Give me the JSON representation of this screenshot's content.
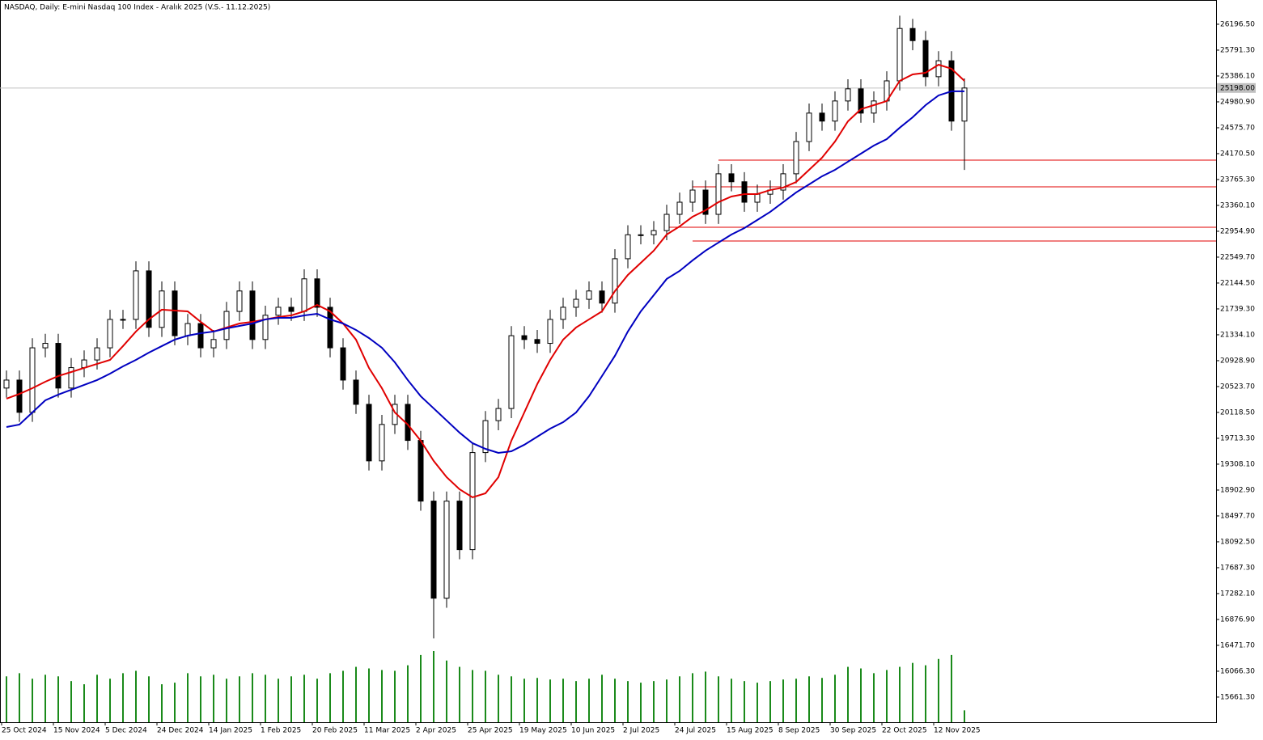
{
  "chart_data": {
    "type": "candlestick",
    "title": "NASDAQ, Daily:  E-mini Nasdaq 100 Index - Aralık 2025 (V.S.- 11.12.2025)",
    "categories": [
      "25 Oct 2024",
      null,
      null,
      null,
      "15 Nov 2024",
      null,
      null,
      null,
      "5 Dec 2024",
      null,
      null,
      null,
      "24 Dec 2024",
      null,
      null,
      null,
      "14 Jan 2025",
      null,
      null,
      null,
      "1 Feb 2025",
      null,
      null,
      null,
      "20 Feb 2025",
      null,
      null,
      null,
      "11 Mar 2025",
      null,
      null,
      null,
      "2 Apr 2025",
      null,
      null,
      null,
      "25 Apr 2025",
      null,
      null,
      null,
      "19 May 2025",
      null,
      null,
      null,
      "10 Jun 2025",
      null,
      null,
      null,
      "2 Jul 2025",
      null,
      null,
      null,
      "24 Jul 2025",
      null,
      null,
      null,
      "15 Aug 2025",
      null,
      null,
      null,
      "8 Sep 2025",
      null,
      null,
      null,
      "30 Sep 2025",
      null,
      null,
      null,
      "22 Oct 2025",
      null,
      null,
      null,
      "12 Nov 2025",
      null,
      null
    ],
    "open": [
      20500,
      20625,
      20120,
      21130,
      21200,
      20500,
      20820,
      20940,
      21130,
      21575,
      21575,
      22335,
      21450,
      22020,
      21320,
      21510,
      21130,
      21260,
      21700,
      22020,
      21260,
      21640,
      21765,
      21700,
      22210,
      21765,
      21130,
      20625,
      20245,
      19360,
      19930,
      20245,
      19680,
      18730,
      17210,
      18730,
      17970,
      19490,
      19990,
      20180,
      21320,
      21260,
      21200,
      21575,
      21765,
      21890,
      22020,
      21830,
      22525,
      22900,
      22900,
      22965,
      23220,
      23410,
      23600,
      23220,
      23855,
      23730,
      23410,
      23535,
      23600,
      23855,
      24360,
      24805,
      24680,
      24995,
      25185,
      24805,
      24995,
      25310,
      26130,
      25940,
      25375,
      25625,
      24680
    ],
    "high": [
      20775,
      20775,
      21280,
      21350,
      21350,
      20970,
      21090,
      21280,
      21725,
      21725,
      22485,
      22485,
      22170,
      22170,
      21660,
      21660,
      21410,
      21850,
      22170,
      22170,
      21790,
      21915,
      21915,
      22360,
      22360,
      21915,
      21280,
      20775,
      20395,
      20080,
      20395,
      20395,
      19830,
      18880,
      18880,
      18880,
      19640,
      20140,
      20330,
      21470,
      21470,
      21410,
      21725,
      21915,
      22040,
      22170,
      22170,
      22675,
      23050,
      23050,
      23115,
      23370,
      23560,
      23750,
      23750,
      24005,
      24005,
      23880,
      23685,
      23750,
      24005,
      24510,
      24955,
      24955,
      25145,
      25335,
      25335,
      25145,
      25460,
      26330,
      26280,
      26090,
      25775,
      25775,
      25348
    ],
    "low": [
      20350,
      19970,
      19970,
      20980,
      20350,
      20350,
      20670,
      20790,
      20980,
      21425,
      21425,
      21300,
      21300,
      21170,
      21170,
      20980,
      20980,
      21110,
      21550,
      21110,
      21110,
      21490,
      21550,
      21550,
      21615,
      20980,
      20475,
      20095,
      19210,
      19210,
      19780,
      19530,
      18580,
      16580,
      17060,
      17820,
      17820,
      19340,
      19840,
      20030,
      21110,
      21050,
      21050,
      21425,
      21615,
      21740,
      21680,
      21680,
      22375,
      22750,
      22750,
      22815,
      23070,
      23260,
      23070,
      23070,
      23580,
      23260,
      23260,
      23385,
      23450,
      23705,
      24210,
      24530,
      24530,
      24845,
      24655,
      24655,
      24845,
      25160,
      25790,
      25225,
      25225,
      24530,
      23915
    ],
    "close": [
      20625,
      20120,
      21130,
      21200,
      20500,
      20820,
      20940,
      21130,
      21575,
      21575,
      22335,
      21450,
      22020,
      21320,
      21510,
      21130,
      21260,
      21700,
      22020,
      21260,
      21640,
      21765,
      21700,
      22210,
      21765,
      21130,
      20625,
      20245,
      19360,
      19930,
      20245,
      19680,
      18730,
      17210,
      18730,
      17970,
      19490,
      19990,
      20180,
      21320,
      21260,
      21200,
      21575,
      21765,
      21890,
      22020,
      21830,
      22525,
      22900,
      22900,
      22965,
      23220,
      23410,
      23600,
      23220,
      23855,
      23730,
      23410,
      23535,
      23600,
      23855,
      24360,
      24805,
      24680,
      24995,
      25185,
      24805,
      24995,
      25310,
      26130,
      25940,
      25375,
      25625,
      24680,
      25198
    ],
    "ma": [
      {
        "color": "#e00000",
        "values": [
          20334,
          20409,
          20498,
          20599,
          20688,
          20751,
          20815,
          20878,
          20941,
          21157,
          21385,
          21575,
          21727,
          21714,
          21701,
          21537,
          21385,
          21448,
          21511,
          21537,
          21575,
          21613,
          21638,
          21701,
          21802,
          21701,
          21511,
          21258,
          20815,
          20498,
          20118,
          19928,
          19675,
          19359,
          19105,
          18915,
          18789,
          18852,
          19105,
          19675,
          20118,
          20562,
          20941,
          21258,
          21448,
          21575,
          21701,
          22018,
          22271,
          22461,
          22651,
          22904,
          23031,
          23183,
          23284,
          23411,
          23499,
          23537,
          23537,
          23601,
          23639,
          23727,
          23917,
          24107,
          24360,
          24677,
          24867,
          24930,
          24994,
          25310,
          25411,
          25437,
          25563,
          25500,
          25310
        ]
      },
      {
        "color": "#0000c0",
        "values": [
          19890,
          19928,
          20118,
          20308,
          20397,
          20473,
          20549,
          20625,
          20726,
          20840,
          20941,
          21055,
          21157,
          21258,
          21321,
          21359,
          21385,
          21435,
          21473,
          21511,
          21575,
          21600,
          21600,
          21638,
          21663,
          21575,
          21511,
          21410,
          21283,
          21131,
          20903,
          20625,
          20372,
          20182,
          19992,
          19802,
          19637,
          19548,
          19485,
          19510,
          19612,
          19738,
          19865,
          19966,
          20118,
          20372,
          20688,
          21005,
          21385,
          21701,
          21954,
          22208,
          22334,
          22499,
          22651,
          22778,
          22904,
          23005,
          23132,
          23259,
          23411,
          23563,
          23689,
          23816,
          23917,
          24044,
          24170,
          24297,
          24398,
          24576,
          24740,
          24930,
          25082,
          25146,
          25146
        ]
      }
    ],
    "volume": [
      58,
      62,
      55,
      60,
      58,
      52,
      48,
      60,
      55,
      62,
      65,
      58,
      48,
      50,
      62,
      58,
      60,
      55,
      58,
      62,
      60,
      55,
      58,
      60,
      55,
      62,
      65,
      70,
      68,
      66,
      65,
      72,
      85,
      90,
      78,
      70,
      66,
      65,
      60,
      58,
      55,
      56,
      54,
      55,
      52,
      55,
      60,
      55,
      52,
      50,
      52,
      54,
      58,
      62,
      64,
      58,
      55,
      52,
      50,
      52,
      54,
      55,
      58,
      56,
      60,
      70,
      68,
      62,
      66,
      70,
      75,
      72,
      80,
      85,
      15
    ],
    "volume_color": "#1a8a1a",
    "levels": [
      {
        "value": 24069,
        "start": 55
      },
      {
        "value": 23651,
        "start": 53
      },
      {
        "value": 23018,
        "start": 51
      },
      {
        "value": 22803,
        "start": 53
      }
    ],
    "level_color": "#e00000",
    "last_price": {
      "value": 25198,
      "label": "25198.00"
    },
    "ylim": [
      15268,
      26576
    ],
    "yticks": [
      {
        "value": 15661.3,
        "label": "15661.30"
      },
      {
        "value": 16066.3,
        "label": "16066.30"
      },
      {
        "value": 16471.7,
        "label": "16471.70"
      },
      {
        "value": 16876.9,
        "label": "16876.90"
      },
      {
        "value": 17282.1,
        "label": "17282.10"
      },
      {
        "value": 17687.3,
        "label": "17687.30"
      },
      {
        "value": 18092.5,
        "label": "18092.50"
      },
      {
        "value": 18497.7,
        "label": "18497.70"
      },
      {
        "value": 18902.9,
        "label": "18902.90"
      },
      {
        "value": 19308.1,
        "label": "19308.10"
      },
      {
        "value": 19713.3,
        "label": "19713.30"
      },
      {
        "value": 20118.5,
        "label": "20118.50"
      },
      {
        "value": 20523.7,
        "label": "20523.70"
      },
      {
        "value": 20928.9,
        "label": "20928.90"
      },
      {
        "value": 21334.1,
        "label": "21334.10"
      },
      {
        "value": 21739.3,
        "label": "21739.30"
      },
      {
        "value": 22144.5,
        "label": "22144.50"
      },
      {
        "value": 22549.7,
        "label": "22549.70"
      },
      {
        "value": 22954.9,
        "label": "22954.90"
      },
      {
        "value": 23360.1,
        "label": "23360.10"
      },
      {
        "value": 23765.3,
        "label": "23765.30"
      },
      {
        "value": 24170.5,
        "label": "24170.50"
      },
      {
        "value": 24575.7,
        "label": "24575.70"
      },
      {
        "value": 24980.9,
        "label": "24980.90"
      },
      {
        "value": 25386.1,
        "label": "25386.10"
      },
      {
        "value": 25791.3,
        "label": "25791.30"
      },
      {
        "value": 26196.5,
        "label": "26196.50"
      }
    ]
  }
}
